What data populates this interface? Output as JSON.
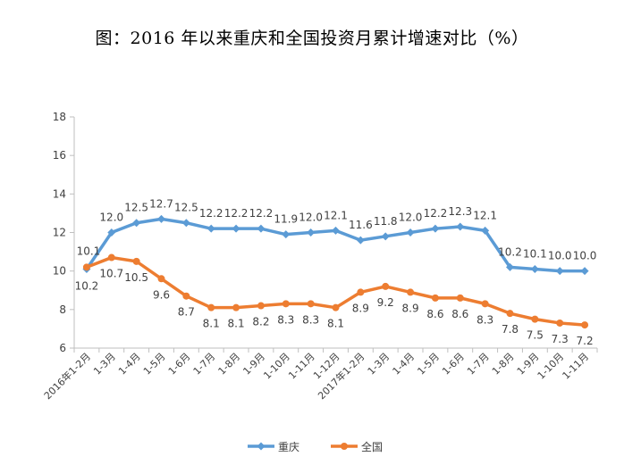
{
  "chart_data": {
    "type": "line",
    "title": "图：2016 年以来重庆和全国投资月累计增速对比（%）",
    "xlabel": "",
    "ylabel": "",
    "ylim": [
      6,
      18
    ],
    "yticks": [
      6,
      8,
      10,
      12,
      14,
      16,
      18
    ],
    "categories": [
      "2016年1-2月",
      "1-3月",
      "1-4月",
      "1-5月",
      "1-6月",
      "1-7月",
      "1-8月",
      "1-9月",
      "1-10月",
      "1-11月",
      "1-12月",
      "2017年1-2月",
      "1-3月",
      "1-4月",
      "1-5月",
      "1-6月",
      "1-7月",
      "1-8月",
      "1-9月",
      "1-10月",
      "1-11月"
    ],
    "series": [
      {
        "name": "重庆",
        "color": "#5B9BD5",
        "values": [
          10.1,
          12.0,
          12.5,
          12.7,
          12.5,
          12.2,
          12.2,
          12.2,
          11.9,
          12.0,
          12.1,
          11.6,
          11.8,
          12.0,
          12.2,
          12.3,
          12.1,
          10.2,
          10.1,
          10.0,
          10.0
        ],
        "labels": [
          "10.1",
          "12.0",
          "12.5",
          "12.7",
          "12.5",
          "12.2",
          "12.2",
          "12.2",
          "11.9",
          "12.0",
          "12.1",
          "11.6",
          "11.8",
          "12.0",
          "12.2",
          "12.3",
          "12.1",
          "10.2",
          "10.1",
          "10.0",
          "10.0"
        ]
      },
      {
        "name": "全国",
        "color": "#ED7D31",
        "values": [
          10.2,
          10.7,
          10.5,
          9.6,
          8.7,
          8.1,
          8.1,
          8.2,
          8.3,
          8.3,
          8.1,
          8.9,
          9.2,
          8.9,
          8.6,
          8.6,
          8.3,
          7.8,
          7.5,
          7.3,
          7.2
        ],
        "labels": [
          "10.2",
          "10.7",
          "10.5",
          "9.6",
          "8.7",
          "8.1",
          "8.1",
          "8.2",
          "8.3",
          "8.3",
          "8.1",
          "8.9",
          "9.2",
          "8.9",
          "8.6",
          "8.6",
          "8.3",
          "7.8",
          "7.5",
          "7.3",
          "7.2"
        ]
      }
    ],
    "legend": "bottom-center",
    "grid": false
  }
}
